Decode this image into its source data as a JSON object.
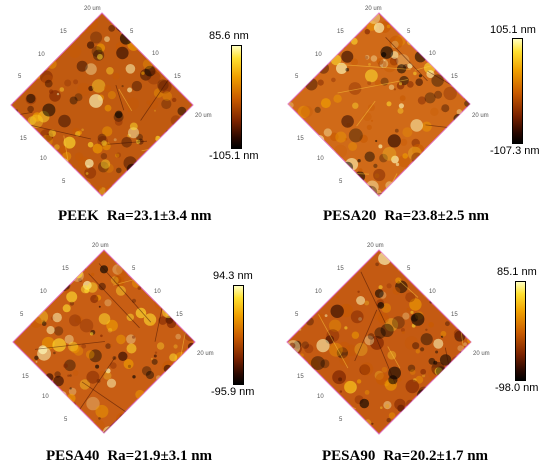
{
  "panels": [
    {
      "sample": "PEEK",
      "ra": "Ra=23.1±3.4 nm",
      "scale_max": "85.6 nm",
      "scale_min": "-105.1 nm"
    },
    {
      "sample": "PESA20",
      "ra": "Ra=23.8±2.5 nm",
      "scale_max": "105.1 nm",
      "scale_min": "-107.3 nm"
    },
    {
      "sample": "PESA40",
      "ra": "Ra=21.9±3.1 nm",
      "scale_max": "94.3 nm",
      "scale_min": "-95.9 nm"
    },
    {
      "sample": "PESA90",
      "ra": "Ra=20.2±1.7 nm",
      "scale_max": "85.1 nm",
      "scale_min": "-98.0 nm"
    }
  ],
  "axis_ticks": {
    "unit_label": "20 um",
    "values": [
      "5",
      "10",
      "15"
    ]
  },
  "colors": {
    "colormap": [
      "#000000",
      "#2a0800",
      "#7a2200",
      "#c85a00",
      "#f0a000",
      "#ffe030",
      "#ffffc0"
    ]
  }
}
